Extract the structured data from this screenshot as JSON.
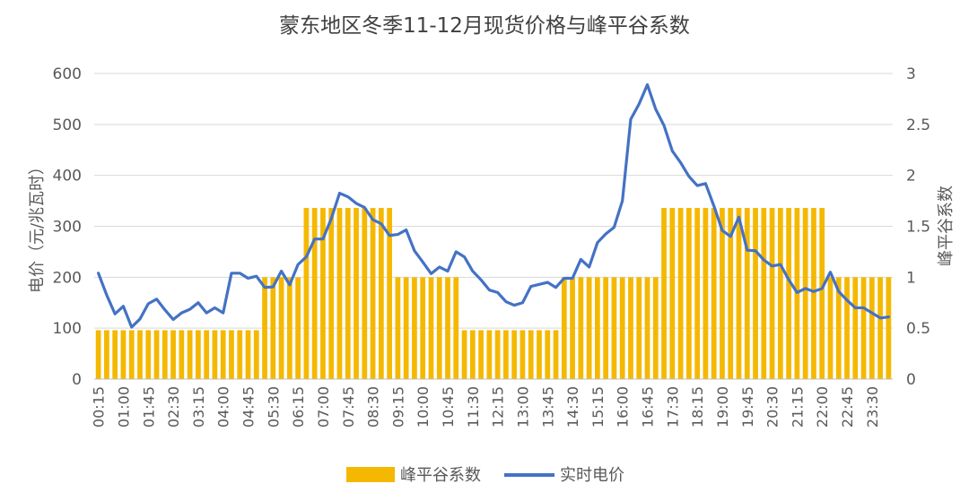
{
  "chart_data": {
    "type": "bar",
    "title": "蒙东地区冬季11-12月现货价格与峰平谷系数",
    "ylabel_left": "电价（元/兆瓦时）",
    "ylabel_right": "峰平谷系数",
    "ylim_left": [
      0,
      600
    ],
    "ylim_right": [
      0,
      3
    ],
    "yticks_left": [
      "0",
      "100",
      "200",
      "300",
      "400",
      "500",
      "600"
    ],
    "yticks_right": [
      "0",
      "0.5",
      "1",
      "1.5",
      "2",
      "2.5",
      "3"
    ],
    "x_tick_labels": [
      "00:15",
      "01:00",
      "01:45",
      "02:30",
      "03:15",
      "04:00",
      "04:45",
      "05:30",
      "06:15",
      "07:00",
      "07:45",
      "08:30",
      "09:15",
      "10:00",
      "10:45",
      "11:30",
      "12:15",
      "13:00",
      "13:45",
      "14:30",
      "15:15",
      "16:00",
      "16:45",
      "17:30",
      "18:15",
      "19:00",
      "19:45",
      "20:30",
      "21:15",
      "22:00",
      "22:45",
      "23:30"
    ],
    "grid": true,
    "legend": "bottom-center",
    "colors": {
      "bars": "#f5b800",
      "line": "#4472c4",
      "grid": "#d9d9d9",
      "text": "#595959"
    },
    "series": [
      {
        "name": "峰平谷系数",
        "type": "bar",
        "axis": "right",
        "segments": [
          {
            "from": "00:15",
            "to": "05:00",
            "value": 0.48
          },
          {
            "from": "05:15",
            "to": "06:15",
            "value": 1.0
          },
          {
            "from": "06:30",
            "to": "09:00",
            "value": 1.68
          },
          {
            "from": "09:15",
            "to": "11:00",
            "value": 1.0
          },
          {
            "from": "11:15",
            "to": "14:00",
            "value": 0.48
          },
          {
            "from": "14:15",
            "to": "17:00",
            "value": 1.0
          },
          {
            "from": "17:15",
            "to": "22:00",
            "value": 1.68
          },
          {
            "from": "22:15",
            "to": "24:00",
            "value": 1.0
          }
        ]
      },
      {
        "name": "实时电价",
        "type": "line",
        "axis": "left",
        "values": [
          208,
          165,
          128,
          143,
          102,
          118,
          148,
          157,
          136,
          117,
          130,
          137,
          150,
          130,
          140,
          130,
          208,
          208,
          198,
          202,
          180,
          181,
          212,
          185,
          225,
          240,
          275,
          275,
          315,
          365,
          358,
          345,
          337,
          313,
          305,
          282,
          284,
          293,
          252,
          230,
          207,
          220,
          212,
          250,
          240,
          212,
          195,
          175,
          170,
          152,
          145,
          150,
          182,
          186,
          190,
          180,
          198,
          198,
          235,
          220,
          268,
          285,
          298,
          350,
          510,
          540,
          578,
          530,
          498,
          448,
          425,
          398,
          380,
          384,
          340,
          292,
          280,
          318,
          253,
          252,
          234,
          222,
          225,
          195,
          170,
          178,
          172,
          178,
          210,
          172,
          155,
          140,
          140,
          130,
          120,
          122
        ]
      }
    ]
  }
}
